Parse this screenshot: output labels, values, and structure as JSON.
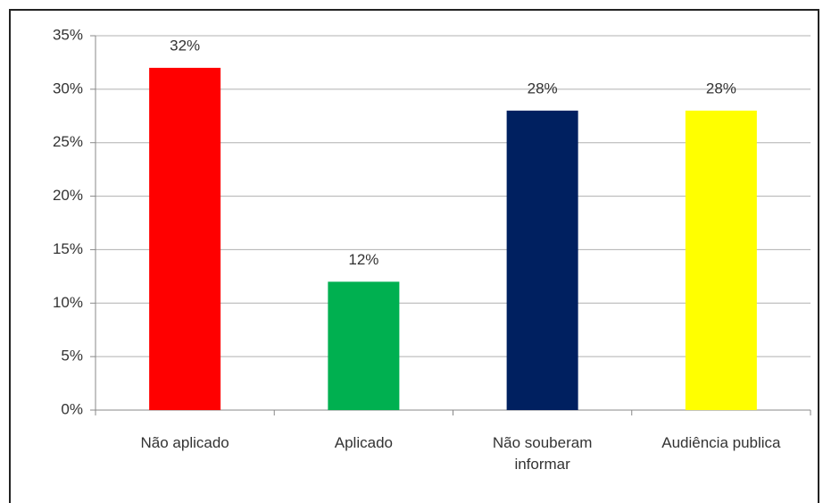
{
  "chart_data": {
    "type": "bar",
    "categories": [
      "Não aplicado",
      "Aplicado",
      "Não souberam informar",
      "Audiência publica"
    ],
    "values": [
      32,
      12,
      28,
      28
    ],
    "value_labels": [
      "32%",
      "12%",
      "28%",
      "28%"
    ],
    "colors": [
      "#ff0000",
      "#00b050",
      "#002060",
      "#ffff00"
    ],
    "ylim": [
      0,
      35
    ],
    "yticks": [
      {
        "value": 0,
        "label": "0%"
      },
      {
        "value": 5,
        "label": "5%"
      },
      {
        "value": 10,
        "label": "10%"
      },
      {
        "value": 15,
        "label": "15%"
      },
      {
        "value": 20,
        "label": "20%"
      },
      {
        "value": 25,
        "label": "25%"
      },
      {
        "value": 30,
        "label": "30%"
      },
      {
        "value": 35,
        "label": "35%"
      }
    ],
    "grid": true
  }
}
